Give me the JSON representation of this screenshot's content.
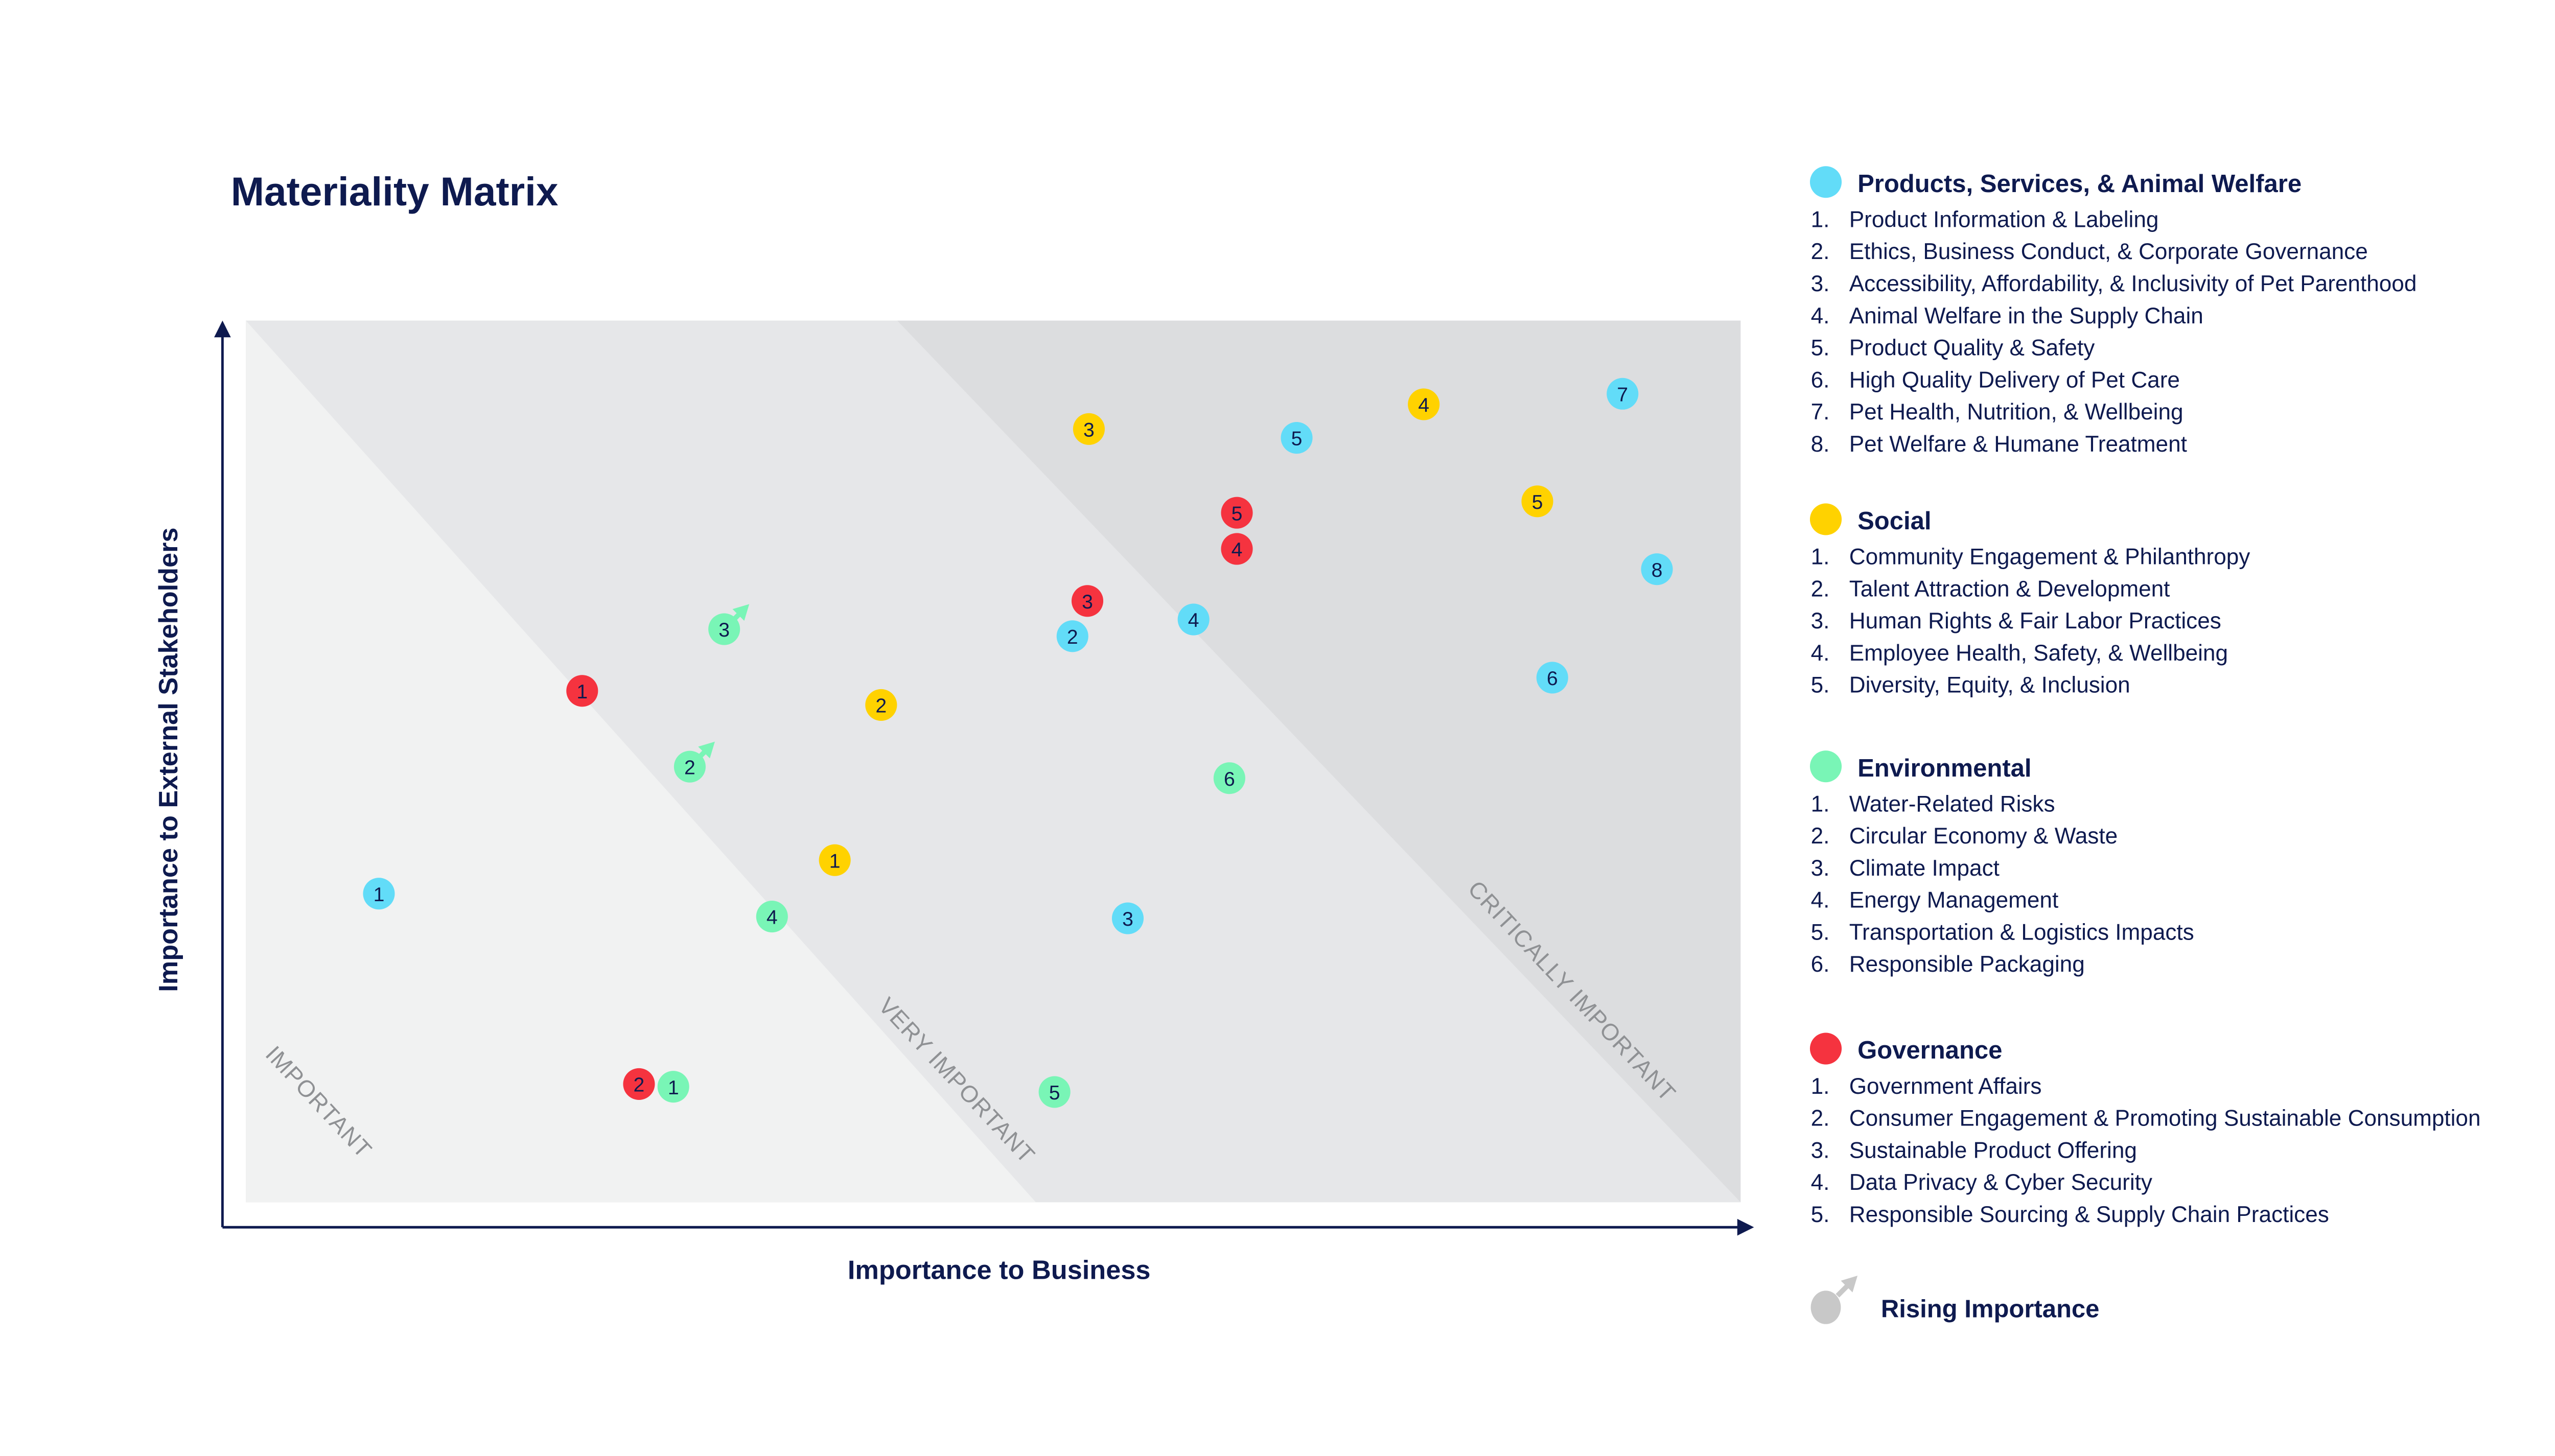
{
  "chart_data": {
    "type": "scatter",
    "title": "Materiality Matrix",
    "xlabel": "Importance to Business",
    "ylabel": "Importance to External Stakeholders",
    "xlim": [
      0,
      100
    ],
    "ylim": [
      0,
      100
    ],
    "grid": false,
    "legend_placement": "right",
    "zones": [
      "IMPORTANT",
      "VERY IMPORTANT",
      "CRITICALLY IMPORTANT"
    ],
    "zone_colors": [
      "#f1f2f2",
      "#e6e7e9",
      "#dcdddf"
    ],
    "rising_label": "Rising Importance",
    "rising_color": "#c8c8c8",
    "series": [
      {
        "name": "Products, Services, & Animal Welfare",
        "color": "#62dcf8",
        "items": [
          "Product Information & Labeling",
          "Ethics, Business Conduct, & Corporate Governance",
          "Accessibility, Affordability, & Inclusivity of Pet Parenthood",
          "Animal Welfare in the Supply Chain",
          "Product Quality & Safety",
          "High Quality Delivery of Pet Care",
          "Pet Health, Nutrition, & Wellbeing",
          "Pet Welfare & Humane Treatment"
        ],
        "points": [
          {
            "label": "1",
            "x": 8.9,
            "y": 35.0
          },
          {
            "label": "2",
            "x": 55.3,
            "y": 64.2
          },
          {
            "label": "3",
            "x": 59.0,
            "y": 32.2
          },
          {
            "label": "4",
            "x": 63.4,
            "y": 66.1
          },
          {
            "label": "5",
            "x": 70.3,
            "y": 86.7
          },
          {
            "label": "6",
            "x": 87.4,
            "y": 59.5
          },
          {
            "label": "7",
            "x": 92.1,
            "y": 91.7
          },
          {
            "label": "8",
            "x": 94.4,
            "y": 71.8
          }
        ]
      },
      {
        "name": "Social",
        "color": "#ffd200",
        "items": [
          "Community Engagement & Philanthropy",
          "Talent Attraction & Development",
          "Human Rights & Fair Labor Practices",
          "Employee Health, Safety, & Wellbeing",
          "Diversity, Equity, & Inclusion"
        ],
        "points": [
          {
            "label": "1",
            "x": 39.4,
            "y": 38.8
          },
          {
            "label": "2",
            "x": 42.5,
            "y": 56.4
          },
          {
            "label": "3",
            "x": 56.4,
            "y": 87.7
          },
          {
            "label": "4",
            "x": 78.8,
            "y": 90.5
          },
          {
            "label": "5",
            "x": 86.4,
            "y": 79.5
          }
        ]
      },
      {
        "name": "Environmental",
        "color": "#79f5b6",
        "items": [
          "Water-Related Risks",
          "Circular Economy & Waste",
          "Climate Impact",
          "Energy Management",
          "Transportation & Logistics Impacts",
          "Responsible Packaging"
        ],
        "points": [
          {
            "label": "1",
            "x": 28.6,
            "y": 13.1
          },
          {
            "label": "2",
            "x": 29.7,
            "y": 49.4,
            "rising": true
          },
          {
            "label": "3",
            "x": 32.0,
            "y": 65.0,
            "rising": true
          },
          {
            "label": "4",
            "x": 35.2,
            "y": 32.4
          },
          {
            "label": "5",
            "x": 54.1,
            "y": 12.5
          },
          {
            "label": "6",
            "x": 65.8,
            "y": 48.1
          }
        ]
      },
      {
        "name": "Governance",
        "color": "#f5333f",
        "items": [
          "Government Affairs",
          "Consumer Engagement & Promoting Sustainable Consumption",
          "Sustainable Product Offering",
          "Data Privacy & Cyber Security",
          "Responsible Sourcing & Supply Chain Practices"
        ],
        "points": [
          {
            "label": "1",
            "x": 22.5,
            "y": 58.0
          },
          {
            "label": "2",
            "x": 26.3,
            "y": 13.4
          },
          {
            "label": "3",
            "x": 56.3,
            "y": 68.2
          },
          {
            "label": "4",
            "x": 66.3,
            "y": 74.1
          },
          {
            "label": "5",
            "x": 66.3,
            "y": 78.2
          }
        ]
      }
    ]
  }
}
